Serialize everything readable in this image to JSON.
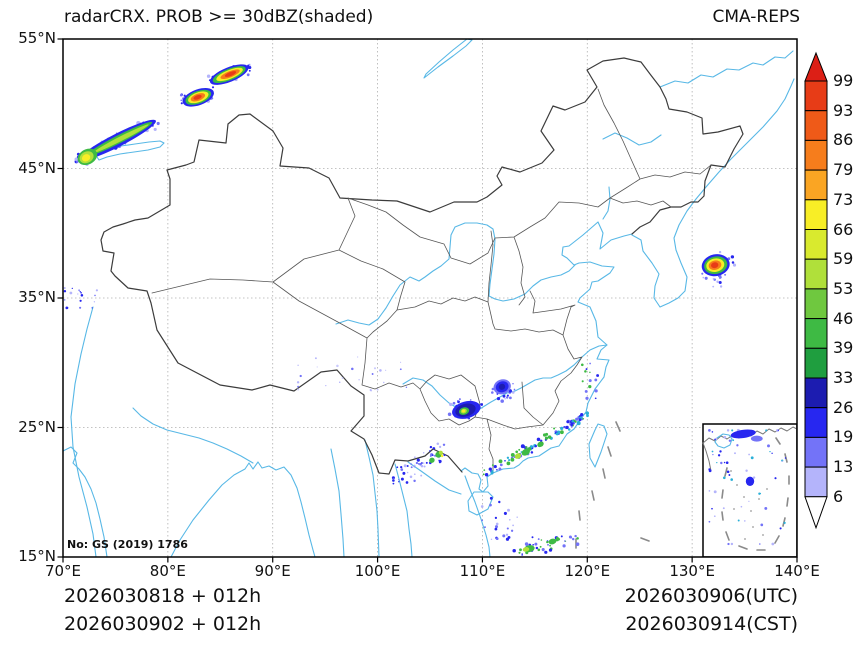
{
  "title": "radarCRX. PROB >= 30dBZ(shaded)",
  "source_label": "CMA-REPS",
  "watermark": "No: GS (2019) 1786",
  "footer": {
    "left_line1": "2026030818 + 012h",
    "left_line2": "2026030902 + 012h",
    "right_line1": "2026030906(UTC)",
    "right_line2": "2026030914(CST)"
  },
  "colors": {
    "coastline": "#58b8e6",
    "land_border": "#3c3c3c",
    "province_border": "#565656",
    "gridline": "#b0b0b0",
    "nine_dash": "#8a8a8a",
    "frame": "#000000"
  },
  "colorbar": {
    "labels": [
      "99",
      "93",
      "86",
      "79",
      "73",
      "66",
      "59",
      "53",
      "46",
      "39",
      "33",
      "26",
      "19",
      "13",
      "6"
    ],
    "segment_colors": [
      "#e73c17",
      "#ef5a18",
      "#f67d1c",
      "#faa523",
      "#f8ee26",
      "#d9ea2e",
      "#b0e03a",
      "#6fc83f",
      "#3eba44",
      "#1f9e3f",
      "#1c1cb0",
      "#2727f0",
      "#7373f8",
      "#b4b4fb"
    ],
    "top_arrow_color": "#dc1f16",
    "bottom_arrow_color": "#ffffff"
  },
  "chart_data": {
    "type": "heatmap",
    "title": "radarCRX. PROB >= 30dBZ(shaded)",
    "quantity": "probability of radar composite reflectivity >= 30 dBZ (shaded, %)",
    "x_ticks": [
      "70°E",
      "80°E",
      "90°E",
      "100°E",
      "110°E",
      "120°E",
      "130°E",
      "140°E"
    ],
    "y_ticks": [
      "55°N",
      "45°N",
      "35°N",
      "25°N",
      "15°N"
    ],
    "lon_range": [
      70,
      140
    ],
    "lat_range": [
      15,
      55
    ],
    "levels": [
      6,
      13,
      19,
      26,
      33,
      39,
      46,
      53,
      59,
      66,
      73,
      79,
      86,
      93,
      99
    ],
    "legend_position": "right colorbar",
    "grid": "dotted, every 10 degrees",
    "echo_regions": [
      {
        "name": "northwest-streak",
        "lon": [
          71.1,
          79.3
        ],
        "lat": [
          45.2,
          49.1
        ],
        "max_prob": 73,
        "axis": [
          0.06,
          0.9,
          0.95,
          0.08
        ],
        "spread": 0.1,
        "n": 85,
        "dot": 1.4,
        "colors": [
          "#b4b4fb",
          "#7373f8",
          "#2727f0"
        ],
        "blobs": [
          [
            0.5,
            0.49,
            0.5,
            0.13,
            -27,
            "#2727f0"
          ],
          [
            0.52,
            0.47,
            0.43,
            0.08,
            -27,
            "#3eba44"
          ],
          [
            0.54,
            0.46,
            0.36,
            0.045,
            -27,
            "#b0e03a"
          ],
          [
            0.15,
            0.82,
            0.12,
            0.15,
            -27,
            "#3eba44"
          ],
          [
            0.14,
            0.83,
            0.085,
            0.11,
            -27,
            "#b0e03a"
          ],
          [
            0.135,
            0.84,
            0.05,
            0.07,
            -27,
            "#f8ee26"
          ]
        ]
      },
      {
        "name": "altai-south-cell",
        "lon": [
          81.2,
          84.6
        ],
        "lat": [
          49.6,
          51.4
        ],
        "max_prob": 99,
        "axis": [
          0.1,
          0.75,
          0.9,
          0.25
        ],
        "spread": 0.3,
        "n": 26,
        "dot": 1.2,
        "colors": [
          "#b4b4fb",
          "#7373f8",
          "#2727f0"
        ],
        "blobs": [
          [
            0.5,
            0.5,
            0.46,
            0.34,
            -20,
            "#2727f0"
          ],
          [
            0.5,
            0.5,
            0.38,
            0.27,
            -20,
            "#3eba44"
          ],
          [
            0.5,
            0.5,
            0.3,
            0.21,
            -20,
            "#f8ee26"
          ],
          [
            0.49,
            0.5,
            0.21,
            0.15,
            -20,
            "#f67c1b"
          ],
          [
            0.48,
            0.5,
            0.12,
            0.09,
            -20,
            "#e73c17"
          ]
        ]
      },
      {
        "name": "altai-north-cell",
        "lon": [
          83.8,
          87.9
        ],
        "lat": [
          51.4,
          53.1
        ],
        "max_prob": 99,
        "axis": [
          0.08,
          0.8,
          0.92,
          0.2
        ],
        "spread": 0.25,
        "n": 30,
        "dot": 1.2,
        "colors": [
          "#b4b4fb",
          "#7373f8",
          "#2727f0"
        ],
        "blobs": [
          [
            0.5,
            0.5,
            0.48,
            0.33,
            -22,
            "#2727f0"
          ],
          [
            0.5,
            0.5,
            0.41,
            0.26,
            -22,
            "#3eba44"
          ],
          [
            0.51,
            0.49,
            0.33,
            0.2,
            -22,
            "#f8ee26"
          ],
          [
            0.52,
            0.48,
            0.24,
            0.14,
            -22,
            "#f67c1b"
          ],
          [
            0.53,
            0.47,
            0.14,
            0.09,
            -22,
            "#e73c17"
          ]
        ]
      },
      {
        "name": "sea-of-japan-cell",
        "lon": [
          130.9,
          134.1
        ],
        "lat": [
          35.8,
          38.6
        ],
        "max_prob": 99,
        "axis": [
          0.25,
          0.75,
          0.75,
          0.25
        ],
        "spread": 0.3,
        "n": 32,
        "dot": 1.2,
        "colors": [
          "#b4b4fb",
          "#7373f8",
          "#2727f0"
        ],
        "blobs": [
          [
            0.42,
            0.38,
            0.42,
            0.3,
            -12,
            "#2727f0"
          ],
          [
            0.42,
            0.38,
            0.35,
            0.24,
            -12,
            "#3eba44"
          ],
          [
            0.41,
            0.38,
            0.27,
            0.185,
            -12,
            "#f8ee26"
          ],
          [
            0.4,
            0.38,
            0.19,
            0.13,
            -12,
            "#f67c1b"
          ],
          [
            0.39,
            0.38,
            0.11,
            0.08,
            -12,
            "#e73c17"
          ]
        ]
      },
      {
        "name": "hunan-cluster",
        "lon": [
          110.9,
          113.1
        ],
        "lat": [
          27.0,
          28.9
        ],
        "max_prob": 33,
        "axis": [
          0.2,
          0.6,
          0.8,
          0.4
        ],
        "spread": 0.4,
        "n": 30,
        "dot": 1.2,
        "colors": [
          "#b4b4fb",
          "#7373f8",
          "#2727f0"
        ],
        "blobs": [
          [
            0.45,
            0.4,
            0.38,
            0.3,
            -20,
            "#7373f8"
          ],
          [
            0.45,
            0.4,
            0.28,
            0.22,
            -20,
            "#2727f0"
          ],
          [
            0.44,
            0.4,
            0.14,
            0.12,
            -20,
            "#1c1cb0"
          ]
        ]
      },
      {
        "name": "guizhou-cluster",
        "lon": [
          106.8,
          110.1
        ],
        "lat": [
          25.3,
          27.5
        ],
        "max_prob": 73,
        "axis": [
          0.15,
          0.45,
          0.85,
          0.55
        ],
        "spread": 0.35,
        "n": 36,
        "dot": 1.2,
        "colors": [
          "#7373f8",
          "#2727f0",
          "#b4b4fb"
        ],
        "blobs": [
          [
            0.5,
            0.52,
            0.42,
            0.3,
            -15,
            "#2727f0"
          ],
          [
            0.48,
            0.53,
            0.3,
            0.22,
            -15,
            "#1c1cb0"
          ],
          [
            0.44,
            0.56,
            0.15,
            0.13,
            -15,
            "#3eba44"
          ],
          [
            0.43,
            0.56,
            0.09,
            0.08,
            -15,
            "#b0e03a"
          ],
          [
            0.425,
            0.555,
            0.05,
            0.05,
            -15,
            "#f8ee26"
          ]
        ]
      },
      {
        "name": "yunnan-vietnam-band",
        "lon": [
          101.4,
          106.8
        ],
        "lat": [
          20.6,
          24.0
        ],
        "max_prob": 66,
        "axis": [
          0.08,
          0.92,
          0.92,
          0.2
        ],
        "spread": 0.18,
        "n": 55,
        "dot": 1.1,
        "colors": [
          "#7373f8",
          "#2727f0",
          "#b4b4fb",
          "#2727f0"
        ],
        "blobs": [
          [
            0.82,
            0.32,
            0.06,
            0.07,
            -30,
            "#3eba44"
          ],
          [
            0.86,
            0.28,
            0.035,
            0.05,
            -30,
            "#b0e03a"
          ],
          [
            0.7,
            0.45,
            0.05,
            0.06,
            -30,
            "#3eba44"
          ],
          [
            0.88,
            0.35,
            0.02,
            0.03,
            -30,
            "#f8ee26"
          ]
        ]
      },
      {
        "name": "southeast-coast-band",
        "lon": [
          109.6,
          120.4
        ],
        "lat": [
          21.2,
          26.2
        ],
        "max_prob": 59,
        "axis": [
          0.96,
          0.05,
          0.05,
          0.96
        ],
        "spread": 0.05,
        "n": 95,
        "dot": 1.3,
        "colors": [
          "#2727f0",
          "#7373f8",
          "#3eba44",
          "#2ab0d8"
        ],
        "blobs": [
          [
            0.42,
            0.62,
            0.04,
            0.05,
            -30,
            "#3eba44"
          ],
          [
            0.35,
            0.68,
            0.03,
            0.04,
            -30,
            "#b0e03a"
          ],
          [
            0.55,
            0.5,
            0.03,
            0.04,
            -30,
            "#3eba44"
          ]
        ]
      },
      {
        "name": "hainan-south-speckles",
        "lon": [
          109.9,
          113.6
        ],
        "lat": [
          16.3,
          19.6
        ],
        "max_prob": 26,
        "axis": [
          0.25,
          0.2,
          0.7,
          0.9
        ],
        "spread": 0.45,
        "n": 26,
        "dot": 1.1,
        "colors": [
          "#7373f8",
          "#2727f0",
          "#b4b4fb"
        ],
        "blobs": []
      },
      {
        "name": "south-china-sea-band",
        "lon": [
          112.9,
          119.2
        ],
        "lat": [
          15.1,
          17.3
        ],
        "max_prob": 59,
        "axis": [
          0.06,
          0.85,
          0.95,
          0.3
        ],
        "spread": 0.22,
        "n": 42,
        "dot": 1.2,
        "colors": [
          "#2727f0",
          "#3eba44",
          "#7373f8"
        ],
        "blobs": [
          [
            0.25,
            0.75,
            0.08,
            0.12,
            -10,
            "#3eba44"
          ],
          [
            0.2,
            0.78,
            0.05,
            0.08,
            -10,
            "#b0e03a"
          ],
          [
            0.6,
            0.5,
            0.06,
            0.1,
            -15,
            "#3eba44"
          ]
        ]
      },
      {
        "name": "pamir-west-speckles",
        "lon": [
          70.1,
          73.3
        ],
        "lat": [
          34.2,
          35.9
        ],
        "max_prob": 26,
        "axis": [
          0.2,
          0.5,
          0.8,
          0.5
        ],
        "spread": 0.5,
        "n": 18,
        "dot": 1.0,
        "colors": [
          "#7373f8",
          "#2727f0",
          "#b4b4fb"
        ],
        "blobs": []
      },
      {
        "name": "east-tibet-speckles",
        "lon": [
          92.2,
          103.3
        ],
        "lat": [
          27.8,
          30.7
        ],
        "max_prob": 13,
        "axis": [
          0.1,
          0.5,
          0.9,
          0.5
        ],
        "spread": 0.5,
        "n": 26,
        "dot": 0.9,
        "colors": [
          "#b4b4fb",
          "#c9c9fc",
          "#7373f8"
        ],
        "blobs": []
      },
      {
        "name": "zhejiang-coast-dots",
        "lon": [
          119.3,
          121.2
        ],
        "lat": [
          27.2,
          30.0
        ],
        "max_prob": 33,
        "axis": [
          0.5,
          0.05,
          0.5,
          0.95
        ],
        "spread": 0.4,
        "n": 14,
        "dot": 1.1,
        "colors": [
          "#2727f0",
          "#7373f8",
          "#3eba44"
        ],
        "blobs": []
      },
      {
        "name": "south-china-sea-inset",
        "frame": "inset",
        "fx": [
          0.05,
          0.95
        ],
        "fy": [
          0.03,
          0.92
        ],
        "max_prob": 26,
        "axis": [
          0.35,
          0.08,
          0.45,
          0.78
        ],
        "spread": 0.5,
        "n": 60,
        "dot": 1.0,
        "colors": [
          "#7373f8",
          "#2727f0",
          "#b4b4fb",
          "#2ab0d8"
        ],
        "blobs": [
          [
            0.42,
            0.05,
            0.15,
            0.035,
            -8,
            "#2727f0"
          ],
          [
            0.58,
            0.09,
            0.07,
            0.025,
            0,
            "#7373f8"
          ],
          [
            0.5,
            0.45,
            0.05,
            0.04,
            0,
            "#2727f0"
          ]
        ]
      }
    ]
  }
}
